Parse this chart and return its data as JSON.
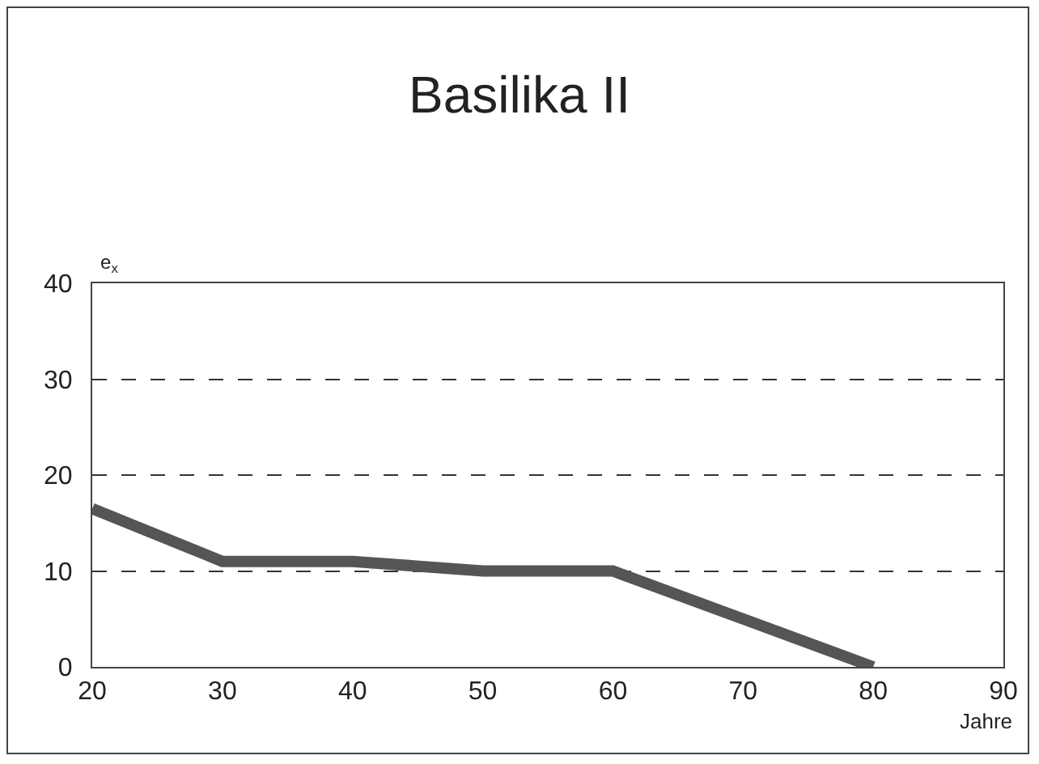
{
  "chart_data": {
    "type": "line",
    "title": "Basilika II",
    "xlabel": "Jahre",
    "ylabel": "e$_{x}$",
    "x": [
      20,
      30,
      40,
      50,
      60,
      70,
      80
    ],
    "series": [
      {
        "color": "#555555",
        "values": [
          16.5,
          11,
          11,
          10,
          10,
          5,
          0
        ]
      }
    ],
    "xlim": [
      20,
      90
    ],
    "xticks": [
      20,
      30,
      40,
      50,
      60,
      70,
      80,
      90
    ],
    "ylim": [
      0,
      40
    ],
    "yticks": [
      0,
      10,
      20,
      30,
      40
    ],
    "grid": "y",
    "marker": "none",
    "line_style": "solid"
  }
}
